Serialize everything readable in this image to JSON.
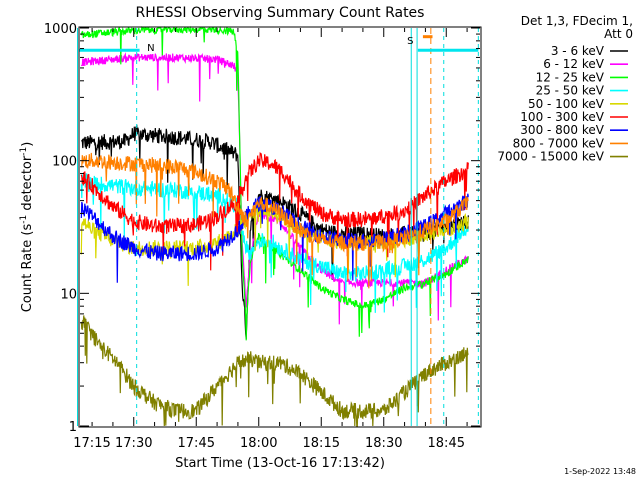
{
  "chart_data": {
    "type": "line",
    "title": "RHESSI Observing Summary Count Rates",
    "xlabel": "Start Time (13-Oct-16 17:13:42)",
    "ylabel_main": "Count Rate (s",
    "ylabel_sup1": "-1",
    "ylabel_mid": " detector",
    "ylabel_sup2": "-1",
    "ylabel_end": ")",
    "y_scale": "log",
    "ylim": [
      1,
      1000
    ],
    "xlim_minutes": [
      17.1,
      113.1
    ],
    "x_ticks": [
      {
        "minute": 15,
        "label": "17:15"
      },
      {
        "minute": 30,
        "label": "17:30"
      },
      {
        "minute": 45,
        "label": "17:45"
      },
      {
        "minute": 60,
        "label": "18:00"
      },
      {
        "minute": 75,
        "label": "18:15"
      },
      {
        "minute": 90,
        "label": "18:30"
      },
      {
        "minute": 105,
        "label": "18:45"
      }
    ],
    "y_ticks": [
      {
        "value": 1,
        "label": "1"
      },
      {
        "value": 10,
        "label": "10"
      },
      {
        "value": 100,
        "label": "100"
      },
      {
        "value": 1000,
        "label": "1000"
      }
    ],
    "legend_header": [
      "Det 1,3, FDecim 1,",
      "Att 0"
    ],
    "series": [
      {
        "name": "3 - 6 keV",
        "color": "#000000",
        "key": [
          [
            15,
            135
          ],
          [
            28,
            140
          ],
          [
            30,
            160
          ],
          [
            40,
            150
          ],
          [
            48,
            140
          ],
          [
            55,
            110
          ],
          [
            56,
            12
          ],
          [
            57,
            5
          ],
          [
            58,
            30
          ],
          [
            60,
            55
          ],
          [
            65,
            50
          ],
          [
            70,
            40
          ],
          [
            75,
            30
          ],
          [
            80,
            28
          ],
          [
            85,
            28
          ],
          [
            90,
            27
          ],
          [
            95,
            28
          ],
          [
            100,
            28
          ],
          [
            105,
            32
          ],
          [
            110,
            35
          ]
        ]
      },
      {
        "name": "6 - 12 keV",
        "color": "#ff00ff",
        "key": [
          [
            15,
            540
          ],
          [
            20,
            560
          ],
          [
            30,
            600
          ],
          [
            40,
            600
          ],
          [
            50,
            580
          ],
          [
            54,
            520
          ],
          [
            55,
            460
          ],
          [
            56,
            25
          ],
          [
            57,
            8
          ],
          [
            58,
            20
          ],
          [
            60,
            40
          ],
          [
            65,
            35
          ],
          [
            70,
            22
          ],
          [
            75,
            15
          ],
          [
            80,
            12
          ],
          [
            85,
            12
          ],
          [
            90,
            12
          ],
          [
            95,
            12
          ],
          [
            100,
            12
          ],
          [
            105,
            15
          ],
          [
            110,
            18
          ]
        ]
      },
      {
        "name": "12 - 25 keV",
        "color": "#00ff00",
        "key": [
          [
            15,
            860
          ],
          [
            20,
            900
          ],
          [
            30,
            960
          ],
          [
            40,
            980
          ],
          [
            50,
            980
          ],
          [
            54,
            940
          ],
          [
            55,
            640
          ],
          [
            56,
            20
          ],
          [
            57,
            6
          ],
          [
            58,
            18
          ],
          [
            60,
            27
          ],
          [
            65,
            20
          ],
          [
            70,
            15
          ],
          [
            75,
            11
          ],
          [
            80,
            9
          ],
          [
            85,
            8
          ],
          [
            90,
            9
          ],
          [
            95,
            11
          ],
          [
            100,
            12
          ],
          [
            105,
            14
          ],
          [
            110,
            18
          ]
        ]
      },
      {
        "name": "25 - 50 keV",
        "color": "#00ffff",
        "key": [
          [
            15,
            72
          ],
          [
            20,
            68
          ],
          [
            30,
            62
          ],
          [
            40,
            60
          ],
          [
            50,
            55
          ],
          [
            55,
            45
          ],
          [
            57,
            22
          ],
          [
            58,
            20
          ],
          [
            60,
            25
          ],
          [
            63,
            25
          ],
          [
            65,
            22
          ],
          [
            70,
            18
          ],
          [
            75,
            16
          ],
          [
            80,
            14
          ],
          [
            85,
            14
          ],
          [
            90,
            15
          ],
          [
            95,
            16
          ],
          [
            100,
            18
          ],
          [
            105,
            22
          ],
          [
            110,
            32
          ]
        ]
      },
      {
        "name": "50 - 100 keV",
        "color": "#d8d800",
        "key": [
          [
            15,
            42
          ],
          [
            20,
            30
          ],
          [
            25,
            25
          ],
          [
            30,
            22
          ],
          [
            35,
            22
          ],
          [
            40,
            22
          ],
          [
            45,
            22
          ],
          [
            50,
            24
          ],
          [
            55,
            30
          ],
          [
            58,
            40
          ],
          [
            60,
            45
          ],
          [
            63,
            42
          ],
          [
            65,
            38
          ],
          [
            70,
            30
          ],
          [
            75,
            26
          ],
          [
            80,
            24
          ],
          [
            85,
            24
          ],
          [
            90,
            24
          ],
          [
            95,
            25
          ],
          [
            100,
            28
          ],
          [
            105,
            30
          ],
          [
            110,
            35
          ]
        ]
      },
      {
        "name": "100 - 300 keV",
        "color": "#ff0000",
        "key": [
          [
            15,
            90
          ],
          [
            20,
            65
          ],
          [
            25,
            45
          ],
          [
            30,
            35
          ],
          [
            35,
            32
          ],
          [
            40,
            32
          ],
          [
            45,
            33
          ],
          [
            50,
            38
          ],
          [
            55,
            50
          ],
          [
            57,
            75
          ],
          [
            60,
            100
          ],
          [
            63,
            95
          ],
          [
            66,
            80
          ],
          [
            70,
            55
          ],
          [
            75,
            40
          ],
          [
            80,
            36
          ],
          [
            85,
            36
          ],
          [
            90,
            38
          ],
          [
            95,
            42
          ],
          [
            100,
            55
          ],
          [
            105,
            70
          ],
          [
            110,
            85
          ]
        ]
      },
      {
        "name": "300 - 800 keV",
        "color": "#0000ff",
        "key": [
          [
            15,
            55
          ],
          [
            20,
            38
          ],
          [
            25,
            27
          ],
          [
            30,
            22
          ],
          [
            35,
            20
          ],
          [
            40,
            20
          ],
          [
            45,
            20
          ],
          [
            50,
            22
          ],
          [
            55,
            30
          ],
          [
            58,
            42
          ],
          [
            60,
            48
          ],
          [
            63,
            45
          ],
          [
            66,
            40
          ],
          [
            70,
            32
          ],
          [
            75,
            27
          ],
          [
            80,
            25
          ],
          [
            85,
            25
          ],
          [
            90,
            26
          ],
          [
            95,
            28
          ],
          [
            100,
            32
          ],
          [
            105,
            40
          ],
          [
            110,
            50
          ]
        ]
      },
      {
        "name": "800 - 7000 keV",
        "color": "#ff8000",
        "key": [
          [
            15,
            100
          ],
          [
            20,
            100
          ],
          [
            30,
            95
          ],
          [
            40,
            90
          ],
          [
            45,
            82
          ],
          [
            50,
            70
          ],
          [
            53,
            60
          ],
          [
            55,
            45
          ],
          [
            57,
            35
          ],
          [
            60,
            48
          ],
          [
            63,
            45
          ],
          [
            66,
            38
          ],
          [
            70,
            30
          ],
          [
            75,
            25
          ],
          [
            80,
            24
          ],
          [
            85,
            24
          ],
          [
            90,
            24
          ],
          [
            95,
            26
          ],
          [
            100,
            30
          ],
          [
            105,
            35
          ],
          [
            110,
            48
          ]
        ]
      },
      {
        "name": "7000 - 15000 keV",
        "color": "#808000",
        "key": [
          [
            15,
            7
          ],
          [
            18,
            6
          ],
          [
            22,
            4
          ],
          [
            26,
            3
          ],
          [
            30,
            2
          ],
          [
            35,
            1.5
          ],
          [
            40,
            1.3
          ],
          [
            45,
            1.3
          ],
          [
            50,
            2
          ],
          [
            55,
            3
          ],
          [
            58,
            3.2
          ],
          [
            60,
            3
          ],
          [
            65,
            3
          ],
          [
            70,
            2.5
          ],
          [
            75,
            1.8
          ],
          [
            80,
            1.3
          ],
          [
            85,
            1.3
          ],
          [
            90,
            1.3
          ],
          [
            95,
            1.8
          ],
          [
            100,
            2.5
          ],
          [
            105,
            3
          ],
          [
            110,
            3.5
          ]
        ]
      }
    ],
    "flag_labels": {
      "n": "N",
      "s": "S"
    },
    "attenuator_dashes_minutes": [
      30.7,
      104.4,
      112.7
    ],
    "saa_solid_minutes": [
      16.5,
      96.6,
      98.0
    ],
    "orange_dash_minute": 101.3,
    "grid": false,
    "legend_placement": "right"
  },
  "footer": {
    "timestamp": "1-Sep-2022 13:48"
  }
}
